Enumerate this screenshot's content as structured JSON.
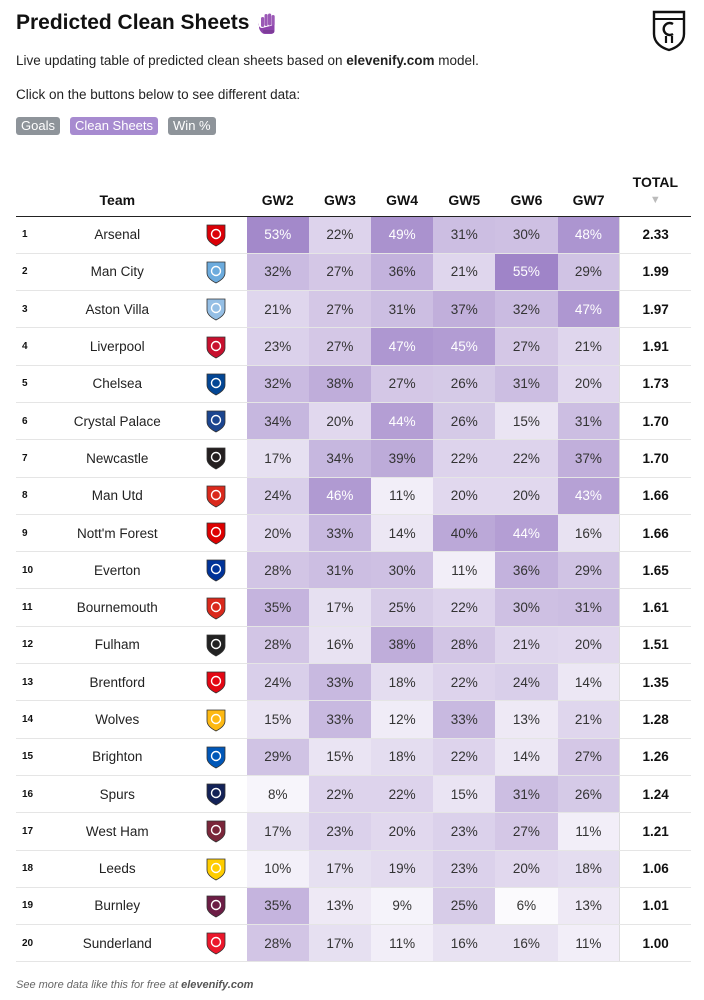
{
  "header": {
    "title": "Predicted Clean Sheets",
    "subtitle_prefix": "Live updating table of predicted clean sheets based on ",
    "subtitle_brand": "elevenify.com",
    "subtitle_suffix": " model.",
    "instruction": "Click on the buttons below to see different data:"
  },
  "buttons": [
    {
      "label": "Goals",
      "active": false
    },
    {
      "label": "Clean Sheets",
      "active": true
    },
    {
      "label": "Win %",
      "active": false
    }
  ],
  "columns": {
    "team": "Team",
    "gws": [
      "GW2",
      "GW3",
      "GW4",
      "GW5",
      "GW6",
      "GW7"
    ],
    "total": "TOTAL",
    "sort_arrow": "▼"
  },
  "colors": {
    "accent": "#a78bd0",
    "cell_max": "#9f84c8",
    "cell_min": "#ffffff"
  },
  "rows": [
    {
      "rank": "1",
      "team": "Arsenal",
      "badge": "arsenal-badge",
      "badge_color": "#db0007",
      "vals": [
        53,
        22,
        49,
        31,
        30,
        48
      ],
      "total": "2.33"
    },
    {
      "rank": "2",
      "team": "Man City",
      "badge": "man-city-badge",
      "badge_color": "#6cabdd",
      "vals": [
        32,
        27,
        36,
        21,
        55,
        29
      ],
      "total": "1.99"
    },
    {
      "rank": "3",
      "team": "Aston Villa",
      "badge": "aston-villa-badge",
      "badge_color": "#95bfe5",
      "vals": [
        21,
        27,
        31,
        37,
        32,
        47
      ],
      "total": "1.97"
    },
    {
      "rank": "4",
      "team": "Liverpool",
      "badge": "liverpool-badge",
      "badge_color": "#c8102e",
      "vals": [
        23,
        27,
        47,
        45,
        27,
        21
      ],
      "total": "1.91"
    },
    {
      "rank": "5",
      "team": "Chelsea",
      "badge": "chelsea-badge",
      "badge_color": "#034694",
      "vals": [
        32,
        38,
        27,
        26,
        31,
        20
      ],
      "total": "1.73"
    },
    {
      "rank": "6",
      "team": "Crystal Palace",
      "badge": "crystal-palace-badge",
      "badge_color": "#1b458f",
      "vals": [
        34,
        20,
        44,
        26,
        15,
        31
      ],
      "total": "1.70"
    },
    {
      "rank": "7",
      "team": "Newcastle",
      "badge": "newcastle-badge",
      "badge_color": "#241f20",
      "vals": [
        17,
        34,
        39,
        22,
        22,
        37
      ],
      "total": "1.70"
    },
    {
      "rank": "8",
      "team": "Man Utd",
      "badge": "man-utd-badge",
      "badge_color": "#da291c",
      "vals": [
        24,
        46,
        11,
        20,
        20,
        43
      ],
      "total": "1.66"
    },
    {
      "rank": "9",
      "team": "Nott'm Forest",
      "badge": "nottm-forest-badge",
      "badge_color": "#dd0000",
      "vals": [
        20,
        33,
        14,
        40,
        44,
        16
      ],
      "total": "1.66"
    },
    {
      "rank": "10",
      "team": "Everton",
      "badge": "everton-badge",
      "badge_color": "#003399",
      "vals": [
        28,
        31,
        30,
        11,
        36,
        29
      ],
      "total": "1.65"
    },
    {
      "rank": "11",
      "team": "Bournemouth",
      "badge": "bournemouth-badge",
      "badge_color": "#da291c",
      "vals": [
        35,
        17,
        25,
        22,
        30,
        31
      ],
      "total": "1.61"
    },
    {
      "rank": "12",
      "team": "Fulham",
      "badge": "fulham-badge",
      "badge_color": "#222222",
      "vals": [
        28,
        16,
        38,
        28,
        21,
        20
      ],
      "total": "1.51"
    },
    {
      "rank": "13",
      "team": "Brentford",
      "badge": "brentford-badge",
      "badge_color": "#e30613",
      "vals": [
        24,
        33,
        18,
        22,
        24,
        14
      ],
      "total": "1.35"
    },
    {
      "rank": "14",
      "team": "Wolves",
      "badge": "wolves-badge",
      "badge_color": "#fdb913",
      "vals": [
        15,
        33,
        12,
        33,
        13,
        21
      ],
      "total": "1.28"
    },
    {
      "rank": "15",
      "team": "Brighton",
      "badge": "brighton-badge",
      "badge_color": "#0057b8",
      "vals": [
        29,
        15,
        18,
        22,
        14,
        27
      ],
      "total": "1.26"
    },
    {
      "rank": "16",
      "team": "Spurs",
      "badge": "spurs-badge",
      "badge_color": "#132257",
      "vals": [
        8,
        22,
        22,
        15,
        31,
        26
      ],
      "total": "1.24"
    },
    {
      "rank": "17",
      "team": "West Ham",
      "badge": "west-ham-badge",
      "badge_color": "#7a263a",
      "vals": [
        17,
        23,
        20,
        23,
        27,
        11
      ],
      "total": "1.21"
    },
    {
      "rank": "18",
      "team": "Leeds",
      "badge": "leeds-badge",
      "badge_color": "#ffcd00",
      "vals": [
        10,
        17,
        19,
        23,
        20,
        18
      ],
      "total": "1.06"
    },
    {
      "rank": "19",
      "team": "Burnley",
      "badge": "burnley-badge",
      "badge_color": "#6c1d45",
      "vals": [
        35,
        13,
        9,
        25,
        6,
        13
      ],
      "total": "1.01"
    },
    {
      "rank": "20",
      "team": "Sunderland",
      "badge": "sunderland-badge",
      "badge_color": "#eb172b",
      "vals": [
        28,
        17,
        11,
        16,
        16,
        11
      ],
      "total": "1.00"
    }
  ],
  "footer": {
    "prefix": "See more data like this for free at ",
    "brand": "elevenify.com"
  }
}
